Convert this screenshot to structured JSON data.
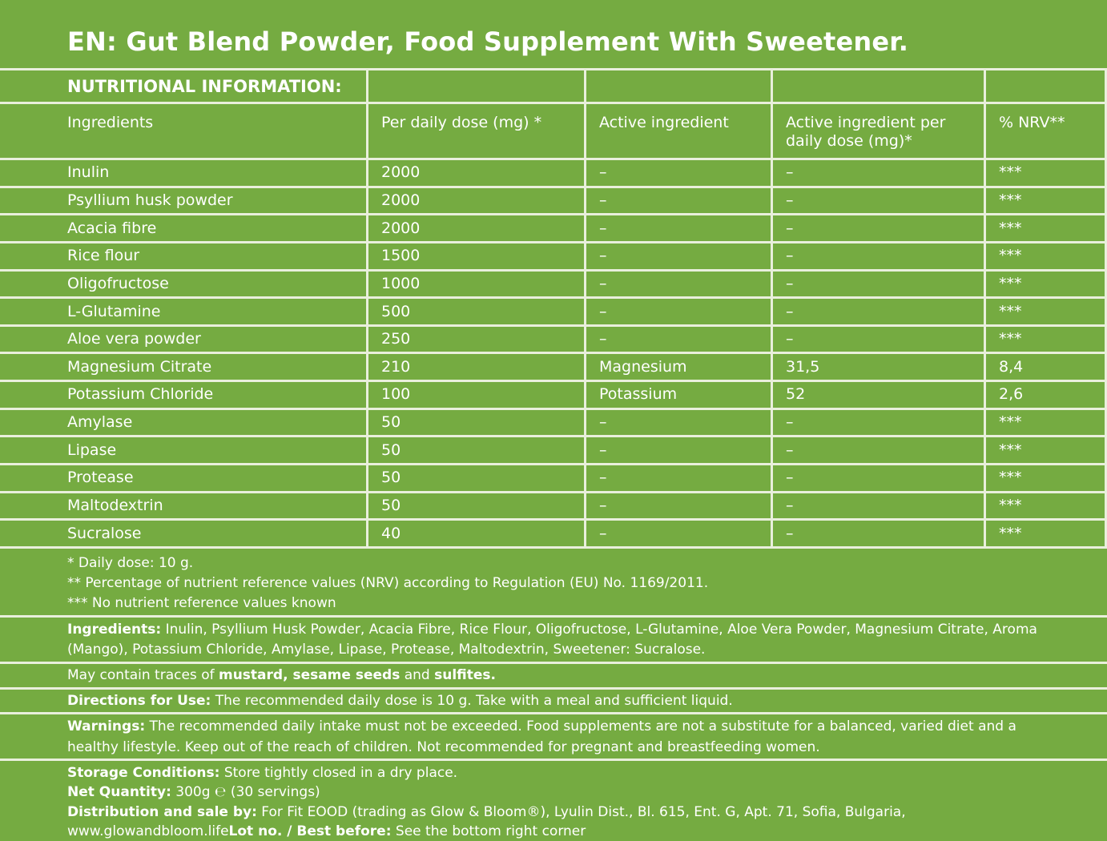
{
  "colors": {
    "background": "#75ab41",
    "divider": "#e9efdc",
    "text": "#ffffff"
  },
  "title": "EN: Gut Blend Powder, Food Supplement With Sweetener.",
  "table": {
    "section_header": "NUTRITIONAL INFORMATION:",
    "columns": [
      "Ingredients",
      "Per daily dose (mg) *",
      "Active ingredient",
      "Active ingredient per daily dose (mg)*",
      "% NRV**"
    ],
    "rows": [
      {
        "ingredient": "Inulin",
        "dose": "2000",
        "active": "–",
        "active_dose": "–",
        "nrv": "***"
      },
      {
        "ingredient": "Psyllium husk powder",
        "dose": "2000",
        "active": "–",
        "active_dose": "–",
        "nrv": "***"
      },
      {
        "ingredient": "Acacia fibre",
        "dose": "2000",
        "active": "–",
        "active_dose": "–",
        "nrv": "***"
      },
      {
        "ingredient": "Rice flour",
        "dose": "1500",
        "active": "–",
        "active_dose": "–",
        "nrv": "***"
      },
      {
        "ingredient": "Oligofructose",
        "dose": "1000",
        "active": "–",
        "active_dose": "–",
        "nrv": "***"
      },
      {
        "ingredient": "L-Glutamine",
        "dose": "500",
        "active": "–",
        "active_dose": "–",
        "nrv": "***"
      },
      {
        "ingredient": "Aloe vera powder",
        "dose": "250",
        "active": "–",
        "active_dose": "–",
        "nrv": "***"
      },
      {
        "ingredient": "Magnesium Citrate",
        "dose": "210",
        "active": "Magnesium",
        "active_dose": "31,5",
        "nrv": "8,4"
      },
      {
        "ingredient": "Potassium Chloride",
        "dose": "100",
        "active": "Potassium",
        "active_dose": "52",
        "nrv": "2,6"
      },
      {
        "ingredient": "Amylase",
        "dose": "50",
        "active": "–",
        "active_dose": "–",
        "nrv": "***"
      },
      {
        "ingredient": "Lipase",
        "dose": "50",
        "active": "–",
        "active_dose": "–",
        "nrv": "***"
      },
      {
        "ingredient": "Protease",
        "dose": "50",
        "active": "–",
        "active_dose": "–",
        "nrv": "***"
      },
      {
        "ingredient": "Maltodextrin",
        "dose": "50",
        "active": "–",
        "active_dose": "–",
        "nrv": "***"
      },
      {
        "ingredient": "Sucralose",
        "dose": "40",
        "active": "–",
        "active_dose": "–",
        "nrv": "***"
      }
    ]
  },
  "footnotes": [
    "* Daily dose: 10 g.",
    "** Percentage of nutrient reference values (NRV) according to Regulation (EU) No. 1169/2011.",
    "*** No nutrient reference values known"
  ],
  "sections": {
    "ingredients": {
      "label": "Ingredients:",
      "text": " Inulin, Psyllium Husk Powder, Acacia Fibre, Rice Flour, Oligofructose, L-Glutamine, Aloe Vera Powder, Magnesium Citrate, Aroma (Mango), Potassium Chloride, Amylase, Lipase, Protease, Maltodextrin, Sweetener: Sucralose."
    },
    "traces": {
      "prefix": "May contain traces of ",
      "allergen1": "mustard, sesame seeds",
      "connector": " and ",
      "allergen2": "sulfites."
    },
    "directions": {
      "label": "Directions for Use:",
      "text": " The recommended daily dose is 10 g. Take with a meal and sufficient liquid."
    },
    "warnings": {
      "label": "Warnings:",
      "text": " The recommended daily intake must not be exceeded. Food supplements are not a substitute for a balanced, varied diet and a healthy lifestyle. Keep out of the reach of children. Not recommended for pregnant and breastfeeding women."
    },
    "storage": {
      "label": "Storage Conditions:",
      "text": " Store tightly closed in a dry place."
    },
    "net_quantity": {
      "label": "Net Quantity:",
      "text": " 300g ℮ (30 servings)"
    },
    "distribution": {
      "label": "Distribution and sale by:",
      "text": " For Fit EOOD (trading as Glow & Bloom®), Lyulin Dist., Bl. 615, Ent. G, Apt. 71, Sofia, Bulgaria,"
    },
    "website": "www.glowandbloom.life",
    "lot": {
      "label": "Lot no. / Best before:",
      "text": " See the bottom right corner"
    }
  }
}
